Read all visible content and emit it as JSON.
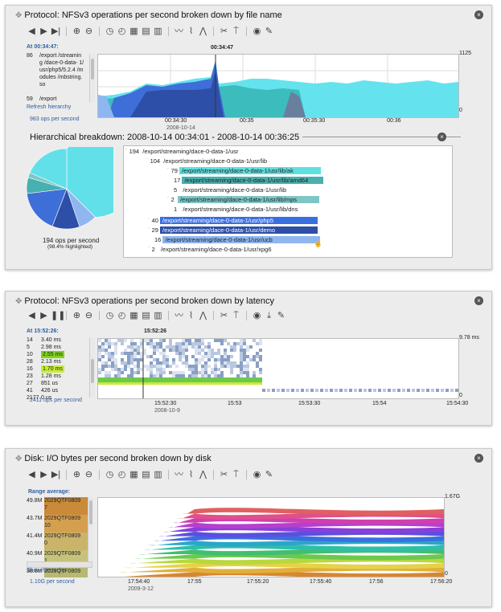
{
  "panel1": {
    "title": "Protocol: NFSv3 operations per second broken down by file name",
    "at_label": "At 00:34:47:",
    "list": [
      {
        "count": "86",
        "name": "/export /streaming /dace-0-data- 1/usr/php5/5.2.4 /modules /mbstring.so"
      },
      {
        "count": "59",
        "name": "/export"
      }
    ],
    "refresh_link": "Refresh hierarchy",
    "ops": "983 ops per second",
    "cursor_label": "00:34:47",
    "ymax": "1125",
    "ymin": "0",
    "xticks": [
      "00:34:30",
      "00:35",
      "00:35:30",
      "00:36"
    ],
    "xdate": "2008-10-14",
    "hier_title": "Hierarchical breakdown: 2008-10-14 00:34:01 - 2008-10-14 00:36:25",
    "pie_ops": "194 ops per second",
    "pie_pct": "(98.4% highlighted)",
    "tree": [
      {
        "count": "194",
        "path": "/export/streaming/dace-0-data-1/usr",
        "bg": ""
      },
      {
        "count": "104",
        "path": "/export/streaming/dace-0-data-1/usr/lib",
        "bg": ""
      },
      {
        "count": "79",
        "path": "/export/streaming/dace-0-data-1/usr/lib/ak",
        "bg": "#5fe0e0"
      },
      {
        "count": "17",
        "path": "/export/streaming/dace-0-data-1/usr/lib/amd64",
        "bg": "#48b0b0"
      },
      {
        "count": "5",
        "path": "/export/streaming/dace-0-data-1/usr/lib",
        "bg": ""
      },
      {
        "count": "2",
        "path": "/export/streaming/dace-0-data-1/usr/lib/mps",
        "bg": "#7fc6c6"
      },
      {
        "count": "1",
        "path": "/export/streaming/dace-0-data-1/usr/lib/dns",
        "bg": ""
      },
      {
        "count": "40",
        "path": "/export/streaming/dace-0-data-1/usr/php5",
        "bg": "#3a6fe0"
      },
      {
        "count": "29",
        "path": "/export/streaming/dace-0-data-1/usr/demo",
        "bg": "#2e4fa8"
      },
      {
        "count": "16",
        "path": "/export/streaming/dace-0-data-1/usr/ucb",
        "bg": "#8fb6f0"
      },
      {
        "count": "2",
        "path": "/export/streaming/dace-0-data-1/usr/xpg6",
        "bg": ""
      }
    ]
  },
  "panel2": {
    "title": "Protocol: NFSv3 operations per second broken down by latency",
    "at_label": "At 15:52:26:",
    "list": [
      {
        "count": "14",
        "lat": "3.40 ms",
        "hl": ""
      },
      {
        "count": "5",
        "lat": "2.98 ms",
        "hl": ""
      },
      {
        "count": "10",
        "lat": "2.55 ms",
        "hl": "#7ed321"
      },
      {
        "count": "28",
        "lat": "2.13 ms",
        "hl": ""
      },
      {
        "count": "16",
        "lat": "1.70 ms",
        "hl": "#c6ec3a"
      },
      {
        "count": "23",
        "lat": "1.28 ms",
        "hl": ""
      },
      {
        "count": "27",
        "lat": "851 us",
        "hl": ""
      },
      {
        "count": "41",
        "lat": "426 us",
        "hl": ""
      },
      {
        "count": "2177",
        "lat": "0 us",
        "hl": ""
      }
    ],
    "ops": "2411 ops per second",
    "cursor_label": "15:52:26",
    "ymax": "9.78 ms",
    "ymin": "0",
    "xticks": [
      "15:52:30",
      "15:53",
      "15:53:30",
      "15:54",
      "15:54:30"
    ],
    "xdate": "2008-10-9"
  },
  "panel3": {
    "title": "Disk: I/O bytes per second broken down by disk",
    "range_label": "Range average:",
    "list": [
      {
        "value": "49.8M",
        "disk": "2029QTF0809",
        "sub": "7",
        "bg": "#c98a3a"
      },
      {
        "value": "43.7M",
        "disk": "2029QTF0809",
        "sub": "10",
        "bg": "#d4a050"
      },
      {
        "value": "41.4M",
        "disk": "2029QTF0809",
        "sub": "0",
        "bg": "#c9b46a"
      },
      {
        "value": "40.9M",
        "disk": "2029QTF0809",
        "sub": "1",
        "bg": "#c7c27a"
      },
      {
        "value": "38.8M",
        "disk": "2029QTF0809",
        "sub": "",
        "bg": "#b8b870"
      }
    ],
    "show_link": "Show hierarchy",
    "ops": "1.10G per second",
    "ymax": "1.67G",
    "ymin": "0",
    "xticks": [
      "17:54:40",
      "17:55",
      "17:55:20",
      "17:55:40",
      "17:56",
      "17:56:20"
    ],
    "xdate": "2009-3-12"
  },
  "icons": {
    "close": "⊗",
    "toolbar": [
      "◀◀",
      "▶",
      "▶▶",
      "⊕",
      "⊖",
      "◔",
      "◷",
      "▦",
      "▦",
      "▦",
      "≈",
      "≈",
      "≈",
      "✂",
      "⤢",
      "◉",
      "✎"
    ]
  }
}
